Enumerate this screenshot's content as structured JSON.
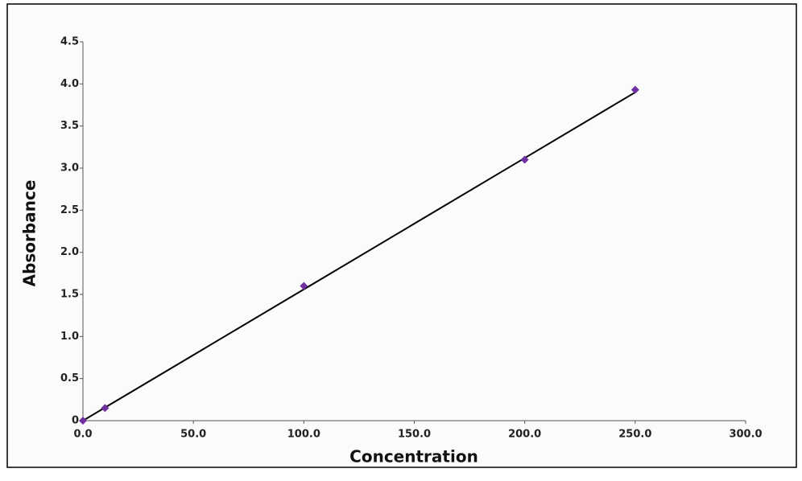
{
  "chart_data": {
    "type": "scatter",
    "x_label": "Concentration",
    "y_label": "Absorbance",
    "xlim": [
      0,
      300
    ],
    "ylim": [
      0,
      4.5
    ],
    "xticks": [
      {
        "value": 0,
        "label": "0.0"
      },
      {
        "value": 50,
        "label": "50.0"
      },
      {
        "value": 100,
        "label": "100.0"
      },
      {
        "value": 150,
        "label": "150.0"
      },
      {
        "value": 200,
        "label": "200.0"
      },
      {
        "value": 250,
        "label": "250.0"
      },
      {
        "value": 300,
        "label": "300.0"
      }
    ],
    "yticks": [
      0,
      0.5,
      {
        "value": 1,
        "label": "1.0"
      },
      1.5,
      {
        "value": 2,
        "label": "2.0"
      },
      2.5,
      {
        "value": 3,
        "label": "3.0"
      },
      3.5,
      {
        "value": 4,
        "label": "4.0"
      },
      4.5
    ],
    "series": [
      {
        "color": "#7030a0",
        "x": [
          0,
          10,
          100,
          200,
          250
        ],
        "values": [
          0,
          0.15,
          1.6,
          3.1,
          3.93
        ]
      }
    ],
    "trendline": {
      "color": "#000000",
      "x": [
        0,
        250
      ],
      "values": [
        0,
        3.9
      ]
    }
  }
}
